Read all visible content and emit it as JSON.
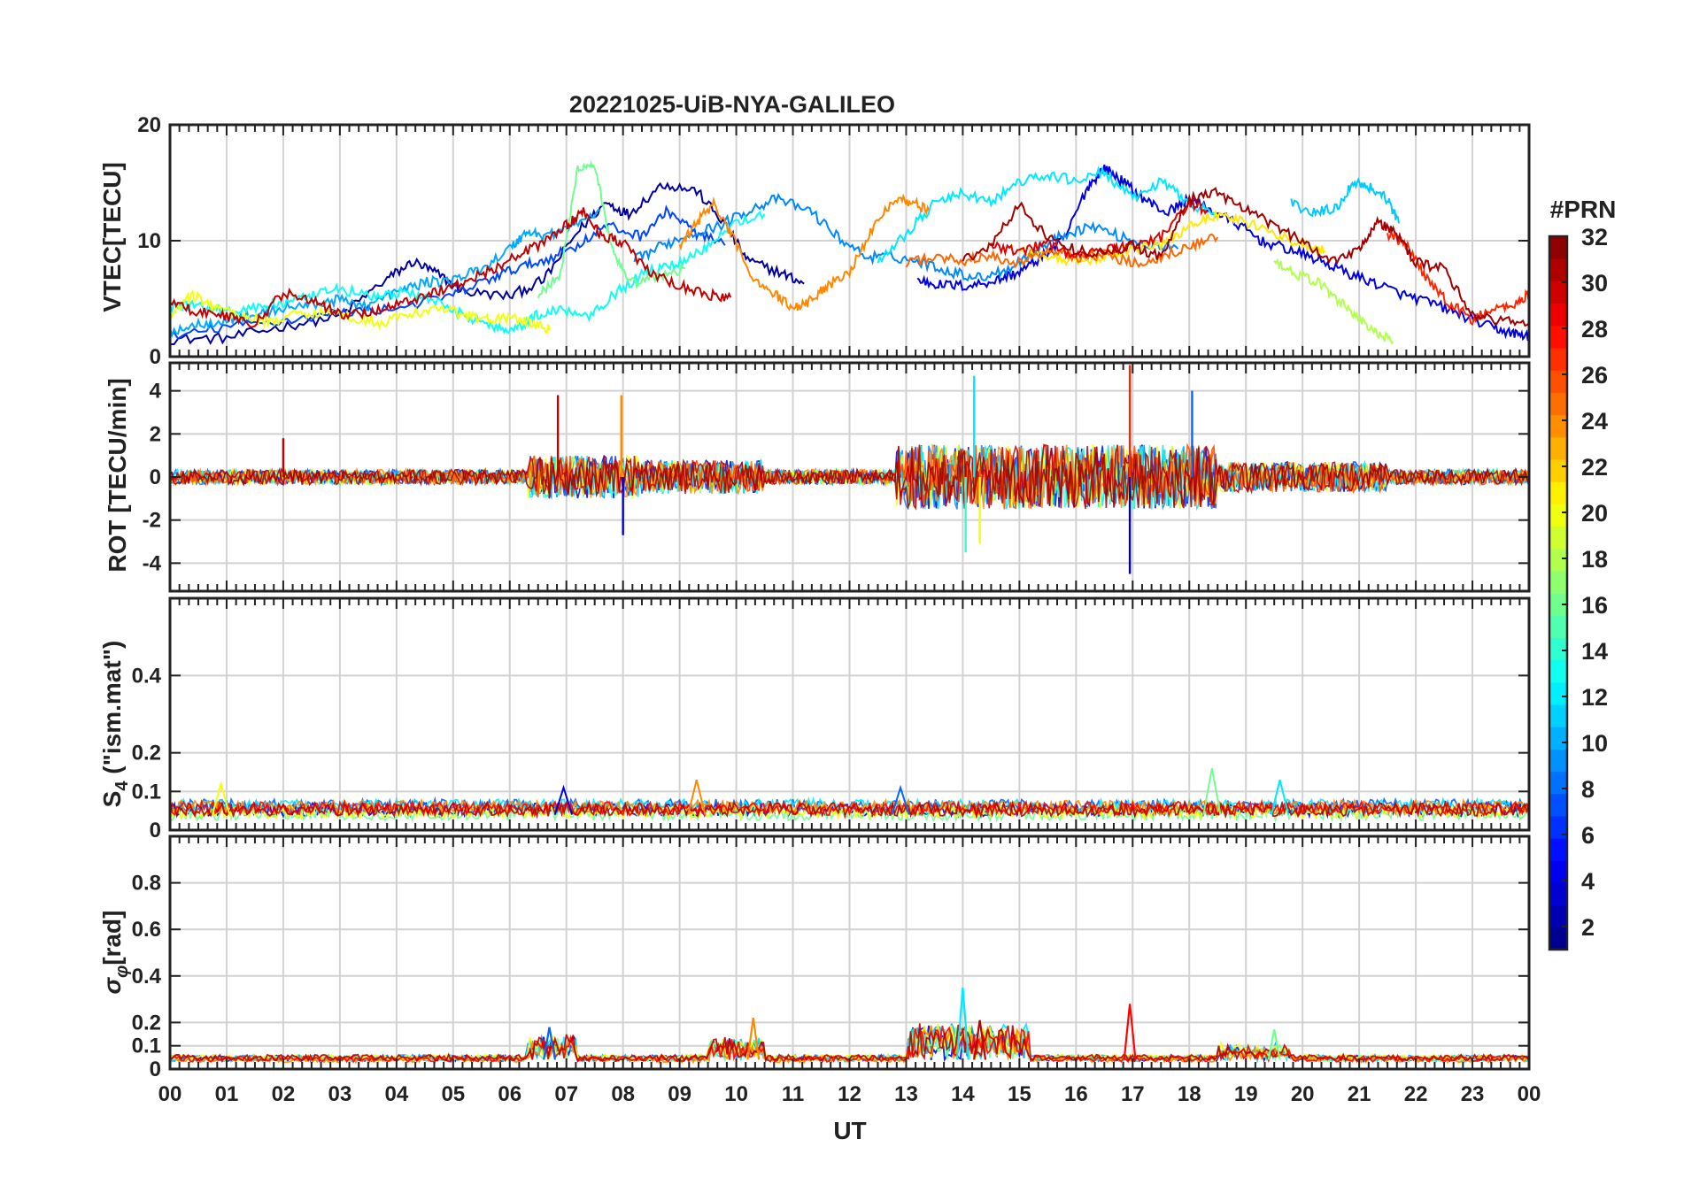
{
  "chart_data": {
    "title": "20221025-UiB-NYA-GALILEO",
    "type": "line",
    "xlabel": "UT",
    "x_ticks": [
      "00",
      "01",
      "02",
      "03",
      "04",
      "05",
      "06",
      "07",
      "08",
      "09",
      "10",
      "11",
      "12",
      "13",
      "14",
      "15",
      "16",
      "17",
      "18",
      "19",
      "20",
      "21",
      "22",
      "23",
      "00"
    ],
    "x_range_hours": [
      0,
      24
    ],
    "grid": true,
    "colorbar": {
      "title": "#PRN",
      "range": [
        1,
        32
      ],
      "ticks": [
        2,
        4,
        6,
        8,
        10,
        12,
        14,
        16,
        18,
        20,
        22,
        24,
        26,
        28,
        30,
        32
      ],
      "colormap": "jet",
      "placement": "right"
    },
    "panels": [
      {
        "id": "vtec",
        "ylabel": "VTEC[TECU]",
        "ylim": [
          0,
          20
        ],
        "yticks": [
          0,
          10,
          20
        ],
        "series": [
          {
            "prn": 2,
            "x": [
              0,
              1,
              2,
              3,
              3.8,
              4.3,
              4.7,
              5.2,
              6,
              6.6,
              7.2,
              7.7,
              8.1,
              8.7,
              9.3,
              9.8,
              10.2,
              10.8,
              11.2
            ],
            "y": [
              1.5,
              1.6,
              2.6,
              3.5,
              6.6,
              8.2,
              7.2,
              5.6,
              5.2,
              6.6,
              10.8,
              13.3,
              12.3,
              14.9,
              14.3,
              11.4,
              8.3,
              7.2,
              6.3
            ]
          },
          {
            "prn": 4,
            "x": [
              13.2,
              13.6,
              14.1,
              14.6,
              15,
              15.4,
              15.8,
              16.2,
              16.5,
              16.8,
              17.2,
              17.6,
              18,
              18.4,
              18.9,
              19.3,
              19.8,
              20.3,
              20.8,
              21.3,
              21.8,
              22.3,
              22.8,
              23.3,
              23.7,
              24
            ],
            "y": [
              6.6,
              6.2,
              6.1,
              6.6,
              7.3,
              8.6,
              10.2,
              14.6,
              16.3,
              15.2,
              13.6,
              12.4,
              13.6,
              12.6,
              11.3,
              9.9,
              9.2,
              8.3,
              7.2,
              6.3,
              5.3,
              4.6,
              3.6,
              2.6,
              2.0,
              1.8
            ]
          },
          {
            "prn": 7,
            "x": [
              0,
              1,
              2,
              3,
              4,
              5,
              5.6,
              6.1,
              6.6,
              7.2,
              7.7,
              8.3,
              8.8,
              9.3,
              9.8
            ],
            "y": [
              1.6,
              2.6,
              3.1,
              3.8,
              4.2,
              5.3,
              6.6,
              7.6,
              8.3,
              9.6,
              11.3,
              10.4,
              12.6,
              10.6,
              9.6
            ]
          },
          {
            "prn": 9,
            "x": [
              8.2,
              8.7,
              9.2,
              9.7,
              10.2,
              10.7,
              11.3,
              11.8,
              12.3,
              12.8,
              13.3,
              13.8,
              14.3,
              14.8,
              15.3,
              15.8,
              16.3,
              16.8,
              17.3,
              17.8
            ],
            "y": [
              8.3,
              9.6,
              10.6,
              11.3,
              12.6,
              13.6,
              12.6,
              10.3,
              8.6,
              8.6,
              8.1,
              7.3,
              6.8,
              7.6,
              9.2,
              10.6,
              11.3,
              10.3,
              9.6,
              9.3
            ]
          },
          {
            "prn": 10,
            "x": [
              0,
              0.5,
              1,
              1.5,
              2,
              2.5,
              3,
              3.5,
              4,
              4.5,
              5,
              5.5,
              6,
              6.3,
              6.6,
              7.1,
              7.6
            ],
            "y": [
              2.2,
              2.8,
              3.2,
              3.6,
              4.2,
              4.5,
              4.9,
              4.4,
              5.6,
              6.4,
              6.6,
              7.6,
              9.3,
              10.8,
              10.4,
              11.2,
              12.6
            ]
          },
          {
            "prn": 11,
            "x": [
              19.8,
              20.2,
              20.6,
              20.9,
              21.2,
              21.5,
              21.7
            ],
            "y": [
              13.2,
              12.4,
              12.8,
              15.1,
              14.6,
              13.6,
              11.5
            ]
          },
          {
            "prn": 12,
            "x": [
              12.5,
              13,
              13.5,
              14,
              14.5,
              15,
              15.5,
              16,
              16.5,
              17,
              17.5,
              18,
              18.5
            ],
            "y": [
              8.3,
              10.6,
              13.2,
              14.1,
              13.3,
              15.1,
              15.6,
              15.2,
              15.9,
              13.6,
              15.1,
              13.3,
              12.1
            ]
          },
          {
            "prn": 13,
            "x": [
              0,
              0.5,
              1,
              1.6,
              2.1,
              2.6,
              3,
              3.6,
              4.1,
              4.6,
              5.2,
              5.7,
              6.1,
              6.5,
              6.9,
              7.4,
              7.9,
              8.4,
              8.9,
              9.4,
              9.9,
              10.5
            ],
            "y": [
              4.3,
              4.5,
              3.9,
              4.3,
              4.7,
              5.3,
              5.9,
              5.1,
              5.6,
              4.9,
              3.6,
              2.6,
              2.4,
              3.6,
              4.1,
              3.6,
              5.6,
              7.3,
              7.9,
              9.2,
              11.4,
              12.3
            ]
          },
          {
            "prn": 16,
            "x": [
              6.5,
              6.9,
              7.2,
              7.5,
              7.8,
              8.1,
              8.6,
              9.1
            ],
            "y": [
              5.3,
              7.1,
              16.3,
              16.6,
              9.2,
              6.3,
              6.8,
              7.6
            ]
          },
          {
            "prn": 18,
            "x": [
              19.5,
              19.9,
              20.3,
              20.7,
              21,
              21.3,
              21.6
            ],
            "y": [
              8.3,
              7.1,
              6.3,
              4.6,
              3.3,
              2.0,
              1.3
            ]
          },
          {
            "prn": 20,
            "x": [
              0,
              0.4,
              0.8,
              1.2,
              1.7,
              2.2,
              2.7,
              3.2,
              3.7,
              4.2,
              4.7,
              5.2,
              5.6,
              6,
              6.4,
              6.7
            ],
            "y": [
              3.6,
              5.3,
              4.3,
              3.6,
              3.0,
              3.6,
              3.9,
              3.4,
              2.9,
              3.6,
              4.2,
              3.6,
              3.2,
              3.3,
              2.9,
              2.3
            ]
          },
          {
            "prn": 21,
            "x": [
              15,
              15.5,
              16,
              16.5,
              17,
              17.5,
              18,
              18.5,
              19,
              19.5,
              20,
              20.4
            ],
            "y": [
              9.3,
              8.6,
              8.1,
              8.6,
              9.3,
              9.6,
              11.3,
              12.3,
              11.6,
              10.6,
              9.6,
              9.1
            ]
          },
          {
            "prn": 24,
            "x": [
              9,
              9.3,
              9.6,
              9.9,
              10.3,
              10.7,
              11,
              11.3,
              11.6,
              12,
              12.4,
              12.8,
              13.1,
              13.4
            ],
            "y": [
              9.3,
              11.6,
              13.2,
              10.6,
              6.8,
              5.3,
              4.2,
              4.8,
              6.1,
              7.4,
              10.9,
              13.8,
              13.3,
              12.6
            ]
          },
          {
            "prn": 25,
            "x": [
              13,
              13.5,
              14,
              14.5,
              15,
              15.5,
              16,
              16.5,
              17,
              17.5,
              18,
              18.5
            ],
            "y": [
              8.1,
              8.6,
              8.3,
              8.6,
              8.1,
              9.2,
              8.6,
              8.8,
              8.1,
              8.6,
              9.6,
              10.3
            ]
          },
          {
            "prn": 27,
            "x": [
              21.5,
              21.8,
              22.2,
              22.6,
              23,
              23.4,
              23.8,
              24
            ],
            "y": [
              10.6,
              9.8,
              6.6,
              4.6,
              3.2,
              4.1,
              4.6,
              5.5
            ]
          },
          {
            "prn": 29,
            "x": [
              14.5,
              15,
              15.5,
              16,
              16.5,
              17,
              17.5,
              18,
              18.3
            ],
            "y": [
              9.6,
              9.1,
              9.8,
              8.6,
              9.2,
              9.6,
              10.3,
              13.3,
              12.6
            ]
          },
          {
            "prn": 30,
            "x": [
              0,
              0.5,
              1,
              1.5,
              2,
              2.5,
              3,
              3.5,
              4,
              4.5,
              5,
              5.5,
              6,
              6.5,
              7,
              7.3,
              7.6,
              8,
              8.5,
              9,
              9.5,
              9.9
            ],
            "y": [
              4.6,
              3.9,
              3.5,
              2.8,
              5.5,
              4.9,
              3.6,
              3.8,
              4.5,
              5.3,
              6.1,
              7.1,
              8.3,
              9.6,
              11.3,
              12.5,
              10.6,
              9.8,
              7.1,
              6.1,
              5.3,
              5.1
            ]
          },
          {
            "prn": 31,
            "x": [
              14,
              14.5,
              15,
              15.5,
              16,
              16.5,
              17,
              17.5,
              18,
              18.5,
              19,
              19.5,
              20,
              20.5,
              21,
              21.3,
              21.6,
              22,
              22.5,
              23,
              23.5,
              24
            ],
            "y": [
              8.3,
              9.6,
              13.1,
              10.3,
              9.2,
              8.9,
              9.6,
              8.6,
              13.6,
              14.2,
              12.6,
              11.3,
              9.9,
              8.3,
              9.3,
              11.6,
              10.9,
              8.1,
              7.6,
              3.6,
              3.1,
              2.9
            ]
          }
        ]
      },
      {
        "id": "rot",
        "ylabel": "ROT [TECU/min]",
        "ylim": [
          -5.3,
          5.3
        ],
        "yticks": [
          -4,
          -2,
          0,
          2,
          4
        ],
        "spikes": [
          {
            "prn": 3,
            "x": 16.95,
            "y": -4.5
          },
          {
            "prn": 30,
            "x": 6.85,
            "y": 3.8
          },
          {
            "prn": 24,
            "x": 7.97,
            "y": 3.8
          },
          {
            "prn": 27,
            "x": 16.95,
            "y": 5.2
          },
          {
            "prn": 12,
            "x": 14.2,
            "y": 4.7
          },
          {
            "prn": 8,
            "x": 18.05,
            "y": 4.0
          },
          {
            "prn": 14,
            "x": 14.05,
            "y": -3.5
          },
          {
            "prn": 20,
            "x": 14.3,
            "y": -3.1
          },
          {
            "prn": 4,
            "x": 8.0,
            "y": -2.7
          },
          {
            "prn": 30,
            "x": 2.0,
            "y": 1.8
          }
        ]
      },
      {
        "id": "s4",
        "ylabel": "S4 (\"ism.mat\")",
        "ylim": [
          0,
          0.6
        ],
        "yticks": [
          0,
          0.1,
          0.2,
          0.4
        ],
        "peaks": [
          {
            "prn": 20,
            "x": 0.9,
            "y": 0.12
          },
          {
            "prn": 24,
            "x": 9.3,
            "y": 0.13
          },
          {
            "prn": 16,
            "x": 18.4,
            "y": 0.16
          },
          {
            "prn": 8,
            "x": 12.9,
            "y": 0.11
          },
          {
            "prn": 4,
            "x": 6.95,
            "y": 0.11
          },
          {
            "prn": 12,
            "x": 19.6,
            "y": 0.13
          }
        ]
      },
      {
        "id": "sigma_phi",
        "ylabel": "σφ[rad]",
        "ylim": [
          0,
          1.0
        ],
        "yticks": [
          0,
          0.1,
          0.2,
          0.4,
          0.6,
          0.8
        ],
        "peaks": [
          {
            "prn": 12,
            "x": 14.0,
            "y": 0.35
          },
          {
            "prn": 28,
            "x": 16.95,
            "y": 0.28
          },
          {
            "prn": 24,
            "x": 10.3,
            "y": 0.22
          },
          {
            "prn": 8,
            "x": 6.7,
            "y": 0.18
          },
          {
            "prn": 16,
            "x": 19.5,
            "y": 0.17
          },
          {
            "prn": 30,
            "x": 14.3,
            "y": 0.21
          }
        ]
      }
    ]
  }
}
